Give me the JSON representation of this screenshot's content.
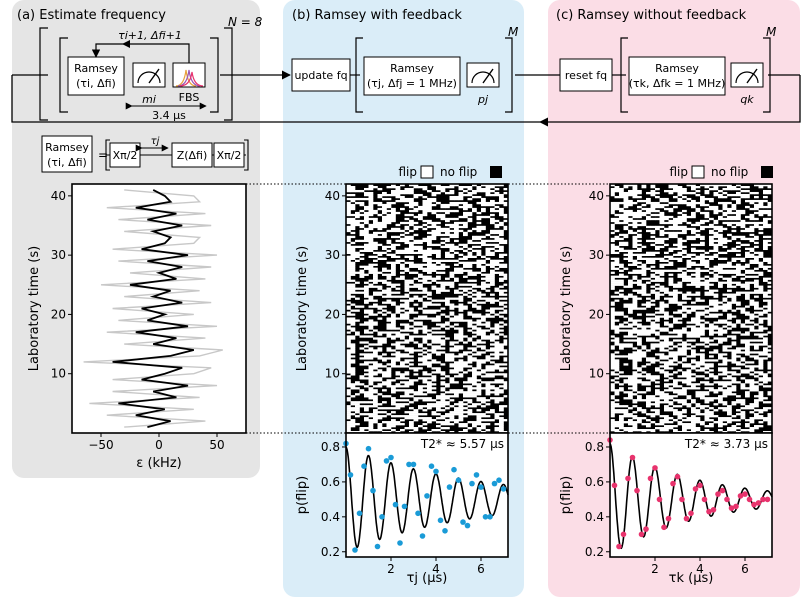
{
  "panels": {
    "a": {
      "title": "(a) Estimate frequency",
      "loop_count": "N = 8",
      "bg": "#e5e5e5"
    },
    "b": {
      "title": "(b) Ramsey with feedback",
      "loop_count": "M",
      "bg": "#daedf8"
    },
    "c": {
      "title": "(c) Ramsey without feedback",
      "loop_count": "M",
      "bg": "#fbdde6"
    }
  },
  "sequence": {
    "ramsey_i_line1": "Ramsey",
    "ramsey_i_line2": "(τi, Δfi)",
    "feedback_label": "τi+1, Δfi+1",
    "meas_i_label": "mi",
    "fbs_label": "FBS",
    "duration_label": "3.4 µs",
    "update_label": "update fq",
    "ramsey_j_line1": "Ramsey",
    "ramsey_j_line2": "(τj, Δfj = 1 MHz)",
    "meas_j_label": "pj",
    "reset_label": "reset fq",
    "ramsey_k_line1": "Ramsey",
    "ramsey_k_line2": "(τk, Δfk = 1 MHz)",
    "meas_k_label": "qk"
  },
  "pulse_detail": {
    "ramsey_line1": "Ramsey",
    "ramsey_line2": "(τi, Δfi)",
    "equals": "=",
    "x_pulse": "Xπ/2",
    "tau_label": "τj",
    "z_gate": "Z(Δfi)"
  },
  "legend": {
    "flip": "flip",
    "no_flip": "no flip"
  },
  "icons": [
    "meter-icon",
    "fbs-spectrum-icon",
    "arrow-icon"
  ],
  "colors": {
    "blue_series": "#1a9bd7",
    "pink_series": "#e8336d",
    "gray_trace": "#c8c8c8"
  },
  "chart_data": [
    {
      "type": "line",
      "panel": "a",
      "xlabel": "ε (kHz)",
      "ylabel": "Laboratory time (s)",
      "xlim": [
        -75,
        75
      ],
      "ylim": [
        0,
        42
      ],
      "xticks": [
        -50,
        0,
        50
      ],
      "yticks": [
        10,
        20,
        30,
        40
      ],
      "series": [
        {
          "color": "#000000",
          "y": [
            1,
            2,
            3,
            4,
            5,
            6,
            7,
            8,
            9,
            10,
            11,
            12,
            13,
            14,
            15,
            16,
            17,
            18,
            19,
            20,
            21,
            22,
            23,
            24,
            25,
            26,
            27,
            28,
            29,
            30,
            31,
            32,
            33,
            34,
            35,
            36,
            37,
            38,
            39,
            40,
            41
          ],
          "x": [
            -10,
            10,
            -20,
            5,
            -35,
            15,
            -5,
            25,
            -15,
            5,
            20,
            -40,
            10,
            30,
            -5,
            15,
            -20,
            25,
            -10,
            5,
            -15,
            20,
            -5,
            10,
            -25,
            15,
            0,
            20,
            -10,
            25,
            -15,
            5,
            10,
            -5,
            20,
            -10,
            15,
            -20,
            10,
            5,
            -5
          ]
        },
        {
          "color": "#c8c8c8",
          "y": [
            1,
            2,
            3,
            4,
            5,
            6,
            7,
            8,
            9,
            10,
            11,
            12,
            13,
            14,
            15,
            16,
            17,
            18,
            19,
            20,
            21,
            22,
            23,
            24,
            25,
            26,
            27,
            28,
            29,
            30,
            31,
            32,
            33,
            34,
            35,
            36,
            37,
            38,
            39,
            40,
            41
          ],
          "x": [
            -30,
            40,
            -45,
            30,
            -60,
            35,
            -40,
            50,
            -40,
            30,
            45,
            -65,
            35,
            55,
            -30,
            40,
            -45,
            50,
            -35,
            30,
            -40,
            45,
            -30,
            35,
            -50,
            40,
            -25,
            45,
            -35,
            50,
            -40,
            30,
            35,
            -30,
            45,
            -35,
            40,
            -45,
            35,
            30,
            -30
          ]
        }
      ]
    },
    {
      "type": "heatmap",
      "panel": "b",
      "ylabel": "Laboratory time (s)",
      "ylim": [
        0,
        42
      ],
      "yticks": [
        10,
        20,
        30,
        40
      ],
      "xlim": [
        0,
        7
      ],
      "legend": [
        "flip",
        "no flip"
      ]
    },
    {
      "type": "heatmap",
      "panel": "c",
      "ylabel": "Laboratory time (s)",
      "ylim": [
        0,
        42
      ],
      "yticks": [
        10,
        20,
        30,
        40
      ],
      "xlim": [
        0,
        7
      ],
      "legend": [
        "flip",
        "no flip"
      ]
    },
    {
      "type": "scatter",
      "panel": "b",
      "annotation": "T2* ≈ 5.57 µs",
      "T2": 5.57,
      "xlabel": "τj (µs)",
      "ylabel": "p(flip)",
      "xlim": [
        0,
        7.2
      ],
      "ylim": [
        0.17,
        0.88
      ],
      "xticks": [
        2,
        4,
        6
      ],
      "yticks": [
        0.2,
        0.4,
        0.6,
        0.8
      ],
      "color": "#1a9bd7",
      "fit": {
        "offset": 0.5,
        "amplitude": 0.3,
        "frequency": 1.0,
        "T2": 5.57
      },
      "x": [
        0.0,
        0.2,
        0.4,
        0.6,
        0.8,
        1.0,
        1.2,
        1.4,
        1.6,
        1.8,
        2.0,
        2.2,
        2.4,
        2.6,
        2.8,
        3.0,
        3.2,
        3.4,
        3.6,
        3.8,
        4.0,
        4.2,
        4.4,
        4.6,
        4.8,
        5.0,
        5.2,
        5.4,
        5.6,
        5.8,
        6.0,
        6.2,
        6.4,
        6.6,
        6.8,
        7.0
      ],
      "y": [
        0.82,
        0.64,
        0.21,
        0.42,
        0.69,
        0.79,
        0.55,
        0.23,
        0.4,
        0.72,
        0.74,
        0.47,
        0.25,
        0.46,
        0.7,
        0.7,
        0.42,
        0.29,
        0.52,
        0.69,
        0.66,
        0.38,
        0.32,
        0.57,
        0.67,
        0.61,
        0.37,
        0.35,
        0.59,
        0.64,
        0.57,
        0.4,
        0.4,
        0.59,
        0.61,
        0.56
      ]
    },
    {
      "type": "scatter",
      "panel": "c",
      "annotation": "T2* ≈ 3.73 µs",
      "T2": 3.73,
      "xlabel": "τk (µs)",
      "ylabel": "p(flip)",
      "xlim": [
        0,
        7.2
      ],
      "ylim": [
        0.17,
        0.88
      ],
      "xticks": [
        2,
        4,
        6
      ],
      "yticks": [
        0.2,
        0.4,
        0.6,
        0.8
      ],
      "color": "#e8336d",
      "fit": {
        "offset": 0.5,
        "amplitude": 0.32,
        "frequency": 1.0,
        "T2": 3.73
      },
      "x": [
        0.0,
        0.2,
        0.4,
        0.6,
        0.8,
        1.0,
        1.2,
        1.4,
        1.6,
        1.8,
        2.0,
        2.2,
        2.4,
        2.6,
        2.8,
        3.0,
        3.2,
        3.4,
        3.6,
        3.8,
        4.0,
        4.2,
        4.4,
        4.6,
        4.8,
        5.0,
        5.2,
        5.4,
        5.6,
        5.8,
        6.0,
        6.2,
        6.4,
        6.6,
        6.8,
        7.0
      ],
      "y": [
        0.84,
        0.58,
        0.23,
        0.3,
        0.62,
        0.74,
        0.55,
        0.3,
        0.33,
        0.62,
        0.68,
        0.5,
        0.34,
        0.39,
        0.59,
        0.63,
        0.5,
        0.39,
        0.42,
        0.56,
        0.58,
        0.5,
        0.43,
        0.44,
        0.53,
        0.55,
        0.5,
        0.45,
        0.46,
        0.52,
        0.53,
        0.5,
        0.47,
        0.48,
        0.5,
        0.5
      ]
    }
  ]
}
